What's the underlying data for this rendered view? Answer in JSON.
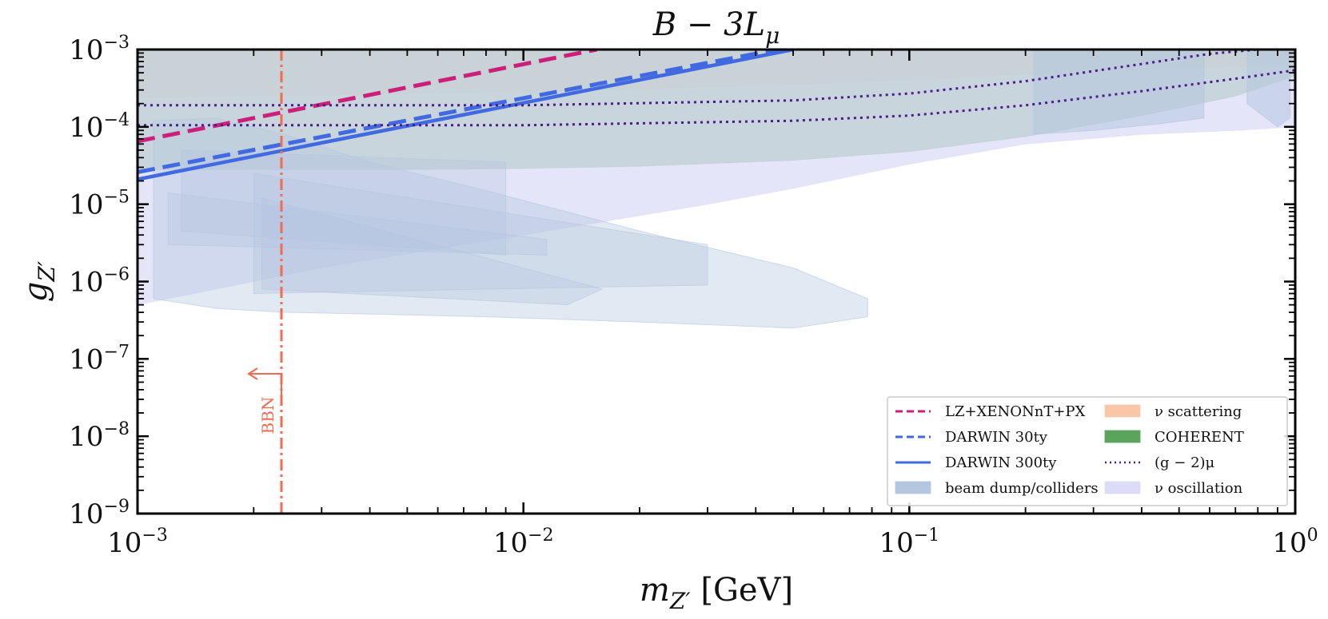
{
  "chart_data": {
    "type": "area",
    "title": "B − 3Lμ",
    "xlabel": "m_Z′ [GeV]",
    "ylabel": "g_Z′",
    "xscale": "log",
    "yscale": "log",
    "xlim": [
      0.001,
      1
    ],
    "ylim": [
      1e-09,
      0.001
    ],
    "x_ticks": [
      {
        "value": 0.001,
        "base": "10",
        "exp": "−3"
      },
      {
        "value": 0.01,
        "base": "10",
        "exp": "−2"
      },
      {
        "value": 0.1,
        "base": "10",
        "exp": "−1"
      },
      {
        "value": 1,
        "base": "10",
        "exp": "0"
      }
    ],
    "y_ticks": [
      {
        "value": 0.001,
        "base": "10",
        "exp": "−3"
      },
      {
        "value": 0.0001,
        "base": "10",
        "exp": "−4"
      },
      {
        "value": 1e-05,
        "base": "10",
        "exp": "−5"
      },
      {
        "value": 1e-06,
        "base": "10",
        "exp": "−6"
      },
      {
        "value": 1e-07,
        "base": "10",
        "exp": "−7"
      },
      {
        "value": 1e-08,
        "base": "10",
        "exp": "−8"
      },
      {
        "value": 1e-09,
        "base": "10",
        "exp": "−9"
      }
    ],
    "legend": {
      "placement": "lower-right",
      "columns": 2,
      "entries": [
        {
          "label": "LZ+XENONnT+PX",
          "kind": "line",
          "color": "#cc1f7a",
          "style": "dashed"
        },
        {
          "label": "ν scattering",
          "kind": "patch",
          "color": "#f9c7a8"
        },
        {
          "label": "DARWIN 30ty",
          "kind": "line",
          "color": "#4169e1",
          "style": "dashed"
        },
        {
          "label": "COHERENT",
          "kind": "patch",
          "color": "#5aa45c"
        },
        {
          "label": "DARWIN 300ty",
          "kind": "line",
          "color": "#4169e1",
          "style": "solid"
        },
        {
          "label": "(g − 2)μ",
          "kind": "line",
          "color": "#4b1d8c",
          "style": "dotted"
        },
        {
          "label": "beam dump/colliders",
          "kind": "patch",
          "color": "#b5c7df"
        },
        {
          "label": "ν oscillation",
          "kind": "patch",
          "color": "#dcdcf7"
        }
      ]
    },
    "bbn": {
      "label": "BBN",
      "mass": 0.00236,
      "color": "#f26a4f"
    },
    "series": [
      {
        "name": "LZ+XENONnT+PX",
        "style": "dashed",
        "color": "#cc1f7a",
        "x": [
          0.001,
          0.0155
        ],
        "y": [
          6.5e-05,
          0.001
        ]
      },
      {
        "name": "DARWIN 30ty",
        "style": "dashed",
        "color": "#4169e1",
        "x": [
          0.001,
          0.0455
        ],
        "y": [
          2.6e-05,
          0.001
        ]
      },
      {
        "name": "DARWIN 300ty",
        "style": "solid",
        "color": "#4169e1",
        "x": [
          0.001,
          0.05
        ],
        "y": [
          2.1e-05,
          0.001
        ]
      },
      {
        "name": "(g − 2)μ upper",
        "style": "dotted",
        "color": "#4b1d8c",
        "x": [
          0.001,
          0.01,
          0.05,
          0.1,
          0.2,
          0.4,
          0.6,
          0.8
        ],
        "y": [
          0.00019,
          0.00019,
          0.00022,
          0.00027,
          0.00039,
          0.00065,
          0.00088,
          0.001
        ]
      },
      {
        "name": "(g − 2)μ lower",
        "style": "dotted",
        "color": "#4b1d8c",
        "x": [
          0.001,
          0.01,
          0.05,
          0.1,
          0.2,
          0.4,
          0.7,
          1
        ],
        "y": [
          0.000105,
          0.000105,
          0.00012,
          0.00014,
          0.00019,
          0.00029,
          0.00042,
          0.00054
        ]
      }
    ],
    "regions": [
      {
        "name": "ν scattering",
        "color": "#f9c7a8",
        "opacity": 0.75,
        "x": [
          0.001,
          0.01,
          0.05,
          0.1,
          0.2,
          0.4,
          0.7,
          1,
          1,
          0.001
        ],
        "y": [
          0.00024,
          0.00028,
          0.00035,
          0.0004,
          0.00048,
          0.00055,
          0.0006,
          0.00065,
          0.001,
          0.001
        ]
      },
      {
        "name": "COHERENT",
        "color": "#5aa45c",
        "opacity": 0.7,
        "x": [
          0.001,
          0.005,
          0.01,
          0.02,
          0.05,
          0.1,
          0.2,
          0.4,
          0.7,
          1,
          1,
          0.001
        ],
        "y": [
          2.8e-05,
          2.8e-05,
          2.9e-05,
          3.1e-05,
          3.7e-05,
          4.8e-05,
          7.5e-05,
          0.00014,
          0.00025,
          0.00046,
          0.001,
          0.001
        ]
      },
      {
        "name": "ν oscillation",
        "color": "#dcdcf7",
        "opacity": 0.75,
        "x": [
          0.001,
          0.003,
          0.01,
          0.03,
          0.05,
          0.1,
          0.2,
          0.4,
          0.7,
          1,
          1,
          0.1,
          0.02,
          0.005,
          0.001
        ],
        "y": [
          5e-07,
          1.5e-06,
          4e-06,
          1e-05,
          1.6e-05,
          3.3e-05,
          6e-05,
          8e-05,
          9e-05,
          0.0001,
          0.001,
          0.001,
          0.001,
          0.001,
          0.001
        ]
      },
      {
        "name": "beam dump/colliders",
        "color": "#b5c7df",
        "opacity": 0.4,
        "x": [
          0.0011,
          0.0016,
          0.0024,
          0.004,
          0.008,
          0.02,
          0.05,
          0.078,
          0.078,
          0.05,
          0.02,
          0.008,
          0.004,
          0.0024,
          0.0016,
          0.0011
        ],
        "y": [
          6e-07,
          4.5e-07,
          4e-07,
          3.8e-07,
          3.5e-07,
          3e-07,
          2.5e-07,
          3.5e-07,
          6e-07,
          1.5e-06,
          4.5e-06,
          1.5e-05,
          3.5e-05,
          8e-05,
          0.00013,
          0.00012
        ]
      },
      {
        "name": "beam dump/colliders",
        "color": "#b5c7df",
        "opacity": 0.35,
        "x": [
          0.0013,
          0.009,
          0.009,
          0.0013
        ],
        "y": [
          4.5e-06,
          2.2e-06,
          3.5e-05,
          5e-05
        ]
      },
      {
        "name": "beam dump/colliders",
        "color": "#b5c7df",
        "opacity": 0.35,
        "x": [
          0.002,
          0.03,
          0.03,
          0.002
        ],
        "y": [
          7e-07,
          9e-07,
          3e-06,
          2.5e-05
        ]
      },
      {
        "name": "beam dump/colliders",
        "color": "#b5c7df",
        "opacity": 0.35,
        "x": [
          0.0012,
          0.0115,
          0.0115,
          0.0012
        ],
        "y": [
          3e-06,
          2.2e-06,
          3.5e-06,
          1.4e-05
        ]
      },
      {
        "name": "beam dump/colliders",
        "color": "#b5c7df",
        "opacity": 0.35,
        "x": [
          0.0021,
          0.013,
          0.016,
          0.0021
        ],
        "y": [
          8e-07,
          5e-07,
          8e-07,
          1.2e-05
        ]
      },
      {
        "name": "beam dump/colliders",
        "color": "#b5c7df",
        "opacity": 0.55,
        "x": [
          0.21,
          0.3,
          0.45,
          0.58,
          0.58,
          0.7,
          0.75,
          0.75,
          0.9,
          0.97,
          0.97,
          0.21
        ],
        "y": [
          8e-05,
          9e-05,
          0.00011,
          0.00013,
          0.001,
          0.001,
          0.001,
          0.0002,
          0.0001,
          0.00013,
          0.001,
          0.001
        ]
      }
    ]
  }
}
